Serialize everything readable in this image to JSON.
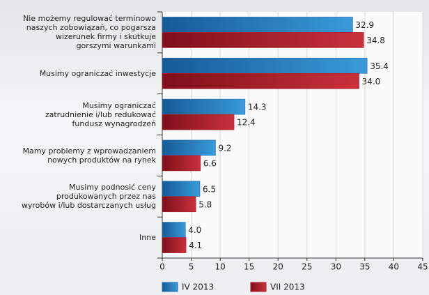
{
  "chart_data": {
    "type": "hbar",
    "categories": [
      "Nie możemy regulować terminowo\nnaszych zobowiązań, co pogarsza\nwizerunek firmy i skutkuje\ngorszymi warunkami",
      "Musimy ograniczać inwestycje",
      "Musimy ograniczać\nzatrudnienie i/lub redukować\nfundusz wynagrodzeń",
      "Mamy problemy z wprowadzaniem\nnowych produktów na rynek",
      "Musimy podnosić ceny\nprodukowanych przez nas\nwyrobów i/lub dostarczanych usług",
      "Inne"
    ],
    "series": [
      {
        "name": "IV 2013",
        "color": "#1f74b8",
        "values": [
          32.9,
          35.4,
          14.3,
          9.2,
          6.5,
          4.0
        ],
        "value_labels": [
          "32.9",
          "35.4",
          "14.3",
          "9.2",
          "6.5",
          "4.0"
        ]
      },
      {
        "name": "VII 2013",
        "color": "#b0202c",
        "values": [
          34.8,
          34.0,
          12.4,
          6.6,
          5.8,
          4.1
        ],
        "value_labels": [
          "34.8",
          "34.0",
          "12.4",
          "6.6",
          "5.8",
          "4.1"
        ]
      }
    ],
    "xlim": [
      0,
      45
    ],
    "xticks": [
      0,
      5,
      10,
      15,
      20,
      25,
      30,
      35,
      40,
      45
    ],
    "grid": true
  }
}
